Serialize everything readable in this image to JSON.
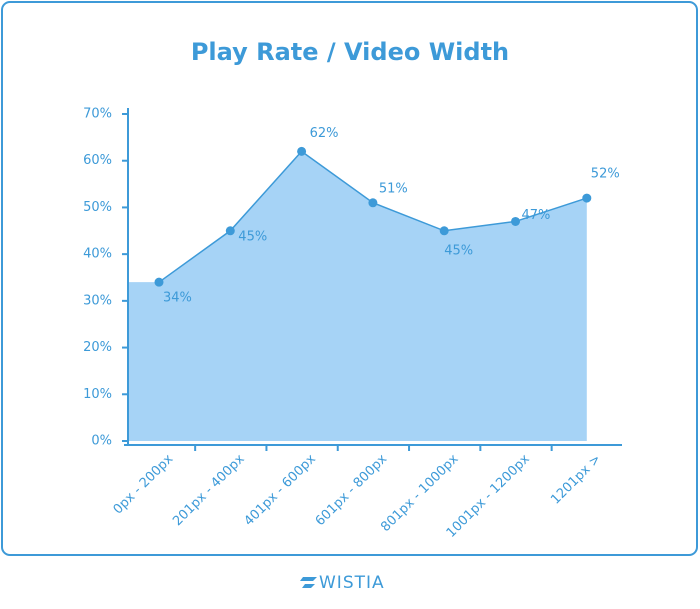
{
  "chart_data": {
    "type": "area",
    "title": "Play Rate / Video Width",
    "categories": [
      "0px - 200px",
      "201px - 400px",
      "401px - 600px",
      "601px - 800px",
      "801px - 1000px",
      "1001px - 1200px",
      "1201px >"
    ],
    "values": [
      34,
      45,
      62,
      51,
      45,
      47,
      52
    ],
    "value_labels": [
      "34%",
      "45%",
      "62%",
      "51%",
      "45%",
      "47%",
      "52%"
    ],
    "color": "#3d9ad8",
    "fill_color": "#a6d3f6",
    "ylim": [
      0,
      70
    ],
    "yticks": [
      {
        "value": 0,
        "label": "0%"
      },
      {
        "value": 10,
        "label": "10%"
      },
      {
        "value": 20,
        "label": "20%"
      },
      {
        "value": 30,
        "label": "30%"
      },
      {
        "value": 40,
        "label": "40%"
      },
      {
        "value": 50,
        "label": "50%"
      },
      {
        "value": 60,
        "label": "60%"
      },
      {
        "value": 70,
        "label": "70%"
      }
    ],
    "grid": false
  },
  "footer": {
    "brand": "WISTIA"
  }
}
